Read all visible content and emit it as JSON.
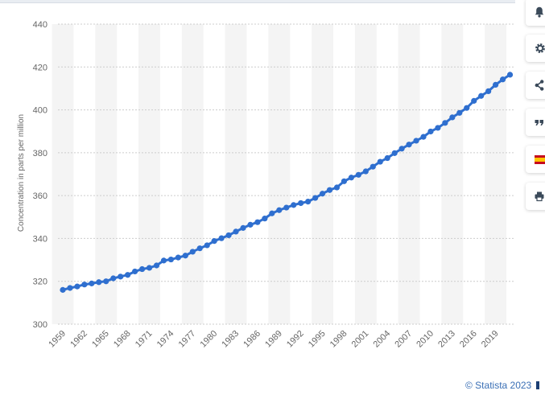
{
  "chart_data": {
    "type": "line",
    "x": [
      1959,
      1960,
      1961,
      1962,
      1963,
      1964,
      1965,
      1966,
      1967,
      1968,
      1969,
      1970,
      1971,
      1972,
      1973,
      1974,
      1975,
      1976,
      1977,
      1978,
      1979,
      1980,
      1981,
      1982,
      1983,
      1984,
      1985,
      1986,
      1987,
      1988,
      1989,
      1990,
      1991,
      1992,
      1993,
      1994,
      1995,
      1996,
      1997,
      1998,
      1999,
      2000,
      2001,
      2002,
      2003,
      2004,
      2005,
      2006,
      2007,
      2008,
      2009,
      2010,
      2011,
      2012,
      2013,
      2014,
      2015,
      2016,
      2017,
      2018,
      2019,
      2020,
      2021
    ],
    "series": [
      {
        "name": "",
        "values": [
          316.0,
          316.9,
          317.6,
          318.5,
          319.0,
          319.6,
          320.0,
          321.4,
          322.2,
          323.0,
          324.6,
          325.7,
          326.3,
          327.4,
          329.7,
          330.2,
          331.1,
          332.0,
          333.8,
          335.4,
          336.8,
          338.8,
          340.1,
          341.5,
          343.2,
          344.9,
          346.4,
          347.6,
          349.3,
          351.7,
          353.2,
          354.4,
          355.6,
          356.5,
          357.2,
          358.9,
          360.9,
          362.6,
          363.8,
          366.7,
          368.4,
          369.7,
          371.3,
          373.5,
          375.8,
          377.5,
          379.8,
          381.9,
          383.8,
          385.6,
          387.4,
          389.9,
          391.6,
          393.9,
          396.5,
          398.6,
          400.9,
          404.2,
          406.5,
          408.7,
          411.7,
          414.2,
          416.4
        ]
      }
    ],
    "x_tick_labels": [
      "1959",
      "1962",
      "1965",
      "1968",
      "1971",
      "1974",
      "1977",
      "1980",
      "1983",
      "1986",
      "1989",
      "1992",
      "1995",
      "1998",
      "2001",
      "2004",
      "2007",
      "2010",
      "2013",
      "2016",
      "2019"
    ],
    "y_ticks": [
      300,
      320,
      340,
      360,
      380,
      400,
      420,
      440
    ],
    "ylim": [
      300,
      440
    ],
    "xlim": [
      1959,
      2021
    ],
    "xlabel": "",
    "ylabel": "Concentration in parts per million",
    "title": "",
    "grid": true,
    "legend": "none",
    "colors": {
      "line": "#2f6fcf",
      "marker": "#2f6fcf",
      "band": "#f4f4f4",
      "grid": "#cccccc",
      "tick_text": "#666666"
    }
  },
  "toolbar": [
    {
      "icon": "bell-icon"
    },
    {
      "icon": "gear-icon"
    },
    {
      "icon": "share-icon"
    },
    {
      "icon": "quote-icon"
    },
    {
      "icon": "spain-flag-icon"
    },
    {
      "icon": "print-icon"
    }
  ],
  "credit": {
    "text": "© Statista 2023"
  }
}
